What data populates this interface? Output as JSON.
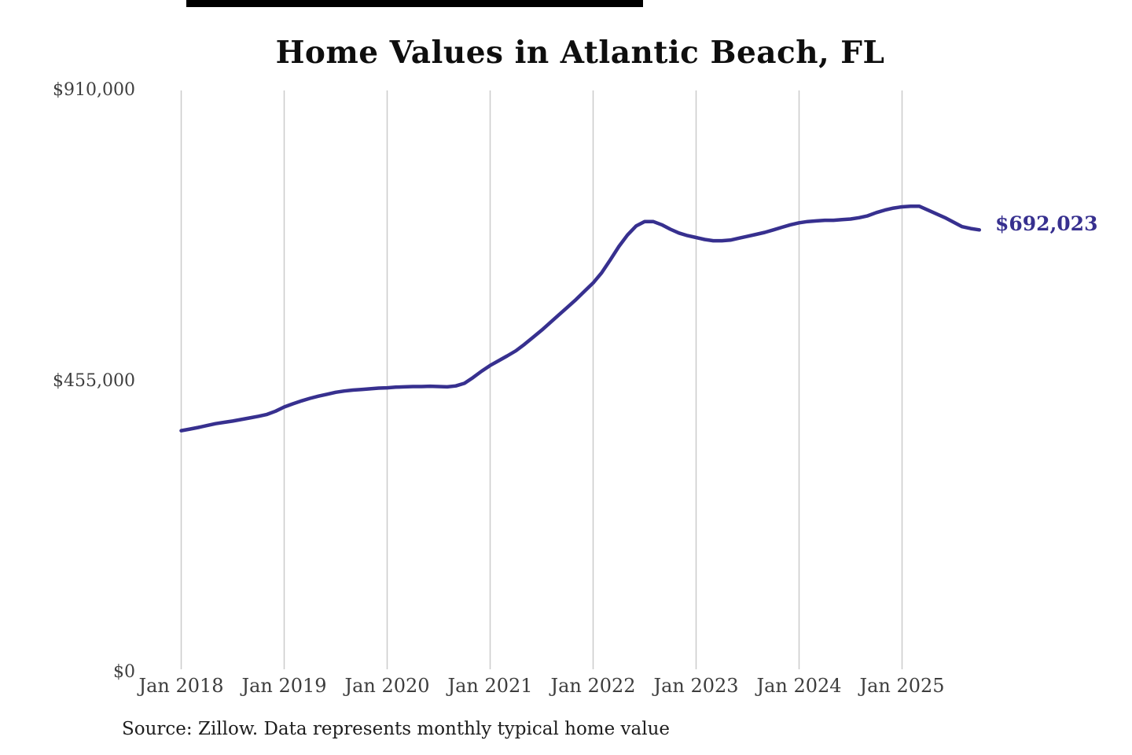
{
  "top_bar": {
    "color": "#000000"
  },
  "chart_data": {
    "type": "line",
    "title": "Home Values in Atlantic Beach, FL",
    "xlabel": "",
    "ylabel": "",
    "ylim": [
      0,
      910000
    ],
    "grid": "vertical",
    "legend": "none",
    "line_color": "#37308f",
    "grid_color": "#cbcbcb",
    "end_label": "$692,023",
    "end_value": 692023,
    "y_ticks": [
      {
        "label": "$0",
        "value": 0
      },
      {
        "label": "$455,000",
        "value": 455000
      },
      {
        "label": "$910,000",
        "value": 910000
      }
    ],
    "x_ticks": [
      "Jan 2018",
      "Jan 2019",
      "Jan 2020",
      "Jan 2021",
      "Jan 2022",
      "Jan 2023",
      "Jan 2024",
      "Jan 2025"
    ],
    "months": [
      "Jan 2018",
      "Feb 2018",
      "Mar 2018",
      "Apr 2018",
      "May 2018",
      "Jun 2018",
      "Jul 2018",
      "Aug 2018",
      "Sep 2018",
      "Oct 2018",
      "Nov 2018",
      "Dec 2018",
      "Jan 2019",
      "Feb 2019",
      "Mar 2019",
      "Apr 2019",
      "May 2019",
      "Jun 2019",
      "Jul 2019",
      "Aug 2019",
      "Sep 2019",
      "Oct 2019",
      "Nov 2019",
      "Dec 2019",
      "Jan 2020",
      "Feb 2020",
      "Mar 2020",
      "Apr 2020",
      "May 2020",
      "Jun 2020",
      "Jul 2020",
      "Aug 2020",
      "Sep 2020",
      "Oct 2020",
      "Nov 2020",
      "Dec 2020",
      "Jan 2021",
      "Feb 2021",
      "Mar 2021",
      "Apr 2021",
      "May 2021",
      "Jun 2021",
      "Jul 2021",
      "Aug 2021",
      "Sep 2021",
      "Oct 2021",
      "Nov 2021",
      "Dec 2021",
      "Jan 2022",
      "Feb 2022",
      "Mar 2022",
      "Apr 2022",
      "May 2022",
      "Jun 2022",
      "Jul 2022",
      "Aug 2022",
      "Sep 2022",
      "Oct 2022",
      "Nov 2022",
      "Dec 2022",
      "Jan 2023",
      "Feb 2023",
      "Mar 2023",
      "Apr 2023",
      "May 2023",
      "Jun 2023",
      "Jul 2023",
      "Aug 2023",
      "Sep 2023",
      "Oct 2023",
      "Nov 2023",
      "Dec 2023",
      "Jan 2024",
      "Feb 2024",
      "Mar 2024",
      "Apr 2024",
      "May 2024",
      "Jun 2024",
      "Jul 2024",
      "Aug 2024",
      "Sep 2024",
      "Oct 2024",
      "Nov 2024",
      "Dec 2024",
      "Jan 2025",
      "Feb 2025",
      "Mar 2025",
      "Apr 2025",
      "May 2025",
      "Jun 2025",
      "Jul 2025",
      "Aug 2025",
      "Sep 2025",
      "Oct 2025"
    ],
    "values": [
      378000,
      380500,
      383000,
      386000,
      389000,
      391000,
      393000,
      395500,
      398000,
      400500,
      403500,
      408500,
      415000,
      420000,
      424500,
      428500,
      432000,
      435000,
      438000,
      440000,
      441500,
      442500,
      443500,
      444500,
      445000,
      446000,
      446500,
      447000,
      447000,
      447500,
      447000,
      446500,
      448000,
      452000,
      461000,
      471000,
      480000,
      487500,
      495000,
      503000,
      513000,
      524000,
      535000,
      547000,
      559000,
      571000,
      583000,
      596000,
      609000,
      625000,
      645000,
      666000,
      684000,
      698000,
      705000,
      705000,
      700000,
      693000,
      687000,
      683000,
      680000,
      677000,
      675000,
      675000,
      676000,
      679000,
      682000,
      685000,
      688000,
      692000,
      696000,
      700000,
      703000,
      705000,
      706000,
      707000,
      707000,
      708000,
      709000,
      711000,
      714000,
      719000,
      723000,
      726000,
      728000,
      729000,
      729000,
      723000,
      717000,
      711000,
      704000,
      697000,
      694000,
      692023
    ]
  },
  "source": {
    "text": "Source: Zillow. Data represents monthly typical home value"
  }
}
